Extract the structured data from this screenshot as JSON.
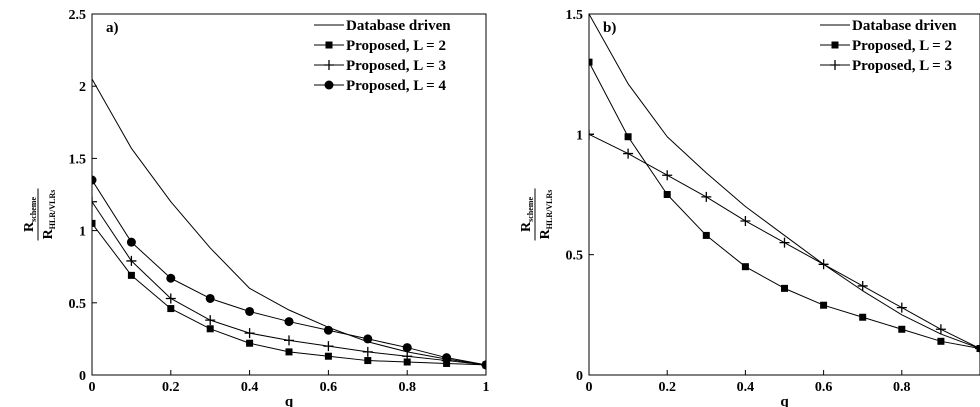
{
  "chart_data": [
    {
      "type": "line",
      "panel_label": "a)",
      "xlabel": "q",
      "ylabel": {
        "numerator_main": "R",
        "numerator_sub": "scheme",
        "denominator_main": "R",
        "denominator_sub": "HLR/VLRs"
      },
      "xlim": [
        0,
        1
      ],
      "ylim": [
        0,
        2.5
      ],
      "xticks": [
        0,
        0.2,
        0.4,
        0.6,
        0.8,
        1
      ],
      "xtick_labels": [
        "0",
        "0.2",
        "0.4",
        "0.6",
        "0.8",
        "1"
      ],
      "yticks": [
        0,
        0.5,
        1,
        1.5,
        2,
        2.5
      ],
      "ytick_labels": [
        "0",
        "0.5",
        "1",
        "1.5",
        "2",
        "2.5"
      ],
      "grid": false,
      "legend_position": "top-right",
      "series": [
        {
          "name": "Database driven",
          "marker": "none",
          "x": [
            0,
            0.1,
            0.2,
            0.3,
            0.4,
            0.5,
            0.6,
            0.7,
            0.8,
            0.9,
            1.0
          ],
          "y": [
            2.05,
            1.57,
            1.2,
            0.88,
            0.6,
            0.45,
            0.33,
            0.23,
            0.16,
            0.11,
            0.07
          ]
        },
        {
          "name": "Proposed, L = 2",
          "marker": "square",
          "x": [
            0,
            0.1,
            0.2,
            0.3,
            0.4,
            0.5,
            0.6,
            0.7,
            0.8,
            0.9,
            1.0
          ],
          "y": [
            1.05,
            0.69,
            0.46,
            0.32,
            0.22,
            0.16,
            0.13,
            0.1,
            0.09,
            0.08,
            0.07
          ]
        },
        {
          "name": "Proposed, L = 3",
          "marker": "plus",
          "x": [
            0,
            0.1,
            0.2,
            0.3,
            0.4,
            0.5,
            0.6,
            0.7,
            0.8,
            0.9,
            1.0
          ],
          "y": [
            1.2,
            0.79,
            0.53,
            0.38,
            0.29,
            0.24,
            0.2,
            0.16,
            0.13,
            0.1,
            0.07
          ]
        },
        {
          "name": "Proposed, L = 4",
          "marker": "circle",
          "x": [
            0,
            0.1,
            0.2,
            0.3,
            0.4,
            0.5,
            0.6,
            0.7,
            0.8,
            0.9,
            1.0
          ],
          "y": [
            1.35,
            0.92,
            0.67,
            0.53,
            0.44,
            0.37,
            0.31,
            0.25,
            0.19,
            0.12,
            0.07
          ]
        }
      ]
    },
    {
      "type": "line",
      "panel_label": "b)",
      "xlabel": "q",
      "ylabel": {
        "numerator_main": "R",
        "numerator_sub": "scheme",
        "denominator_main": "R",
        "denominator_sub": "HLR/VLRs"
      },
      "xlim": [
        0,
        1
      ],
      "ylim": [
        0,
        1.5
      ],
      "xticks": [
        0,
        0.2,
        0.4,
        0.6,
        0.8
      ],
      "xtick_labels": [
        "0",
        "0.2",
        "0.4",
        "0.6",
        "0.8"
      ],
      "yticks": [
        0,
        0.5,
        1,
        1.5
      ],
      "ytick_labels": [
        "0",
        "0.5",
        "1",
        "1.5"
      ],
      "grid": false,
      "legend_position": "top-right",
      "series": [
        {
          "name": "Database driven",
          "marker": "none",
          "x": [
            0,
            0.1,
            0.2,
            0.3,
            0.4,
            0.5,
            0.6,
            0.7,
            0.8,
            0.9,
            1.0
          ],
          "y": [
            1.5,
            1.21,
            0.99,
            0.84,
            0.7,
            0.58,
            0.46,
            0.35,
            0.25,
            0.17,
            0.11
          ]
        },
        {
          "name": "Proposed, L = 2",
          "marker": "square",
          "x": [
            0,
            0.1,
            0.2,
            0.3,
            0.4,
            0.5,
            0.6,
            0.7,
            0.8,
            0.9,
            1.0
          ],
          "y": [
            1.3,
            0.99,
            0.75,
            0.58,
            0.45,
            0.36,
            0.29,
            0.24,
            0.19,
            0.14,
            0.11
          ]
        },
        {
          "name": "Proposed, L = 3",
          "marker": "plus",
          "x": [
            0,
            0.1,
            0.2,
            0.3,
            0.4,
            0.5,
            0.6,
            0.7,
            0.8,
            0.9,
            1.0
          ],
          "y": [
            1.0,
            0.92,
            0.83,
            0.74,
            0.64,
            0.55,
            0.46,
            0.37,
            0.28,
            0.19,
            0.11
          ]
        }
      ]
    }
  ]
}
